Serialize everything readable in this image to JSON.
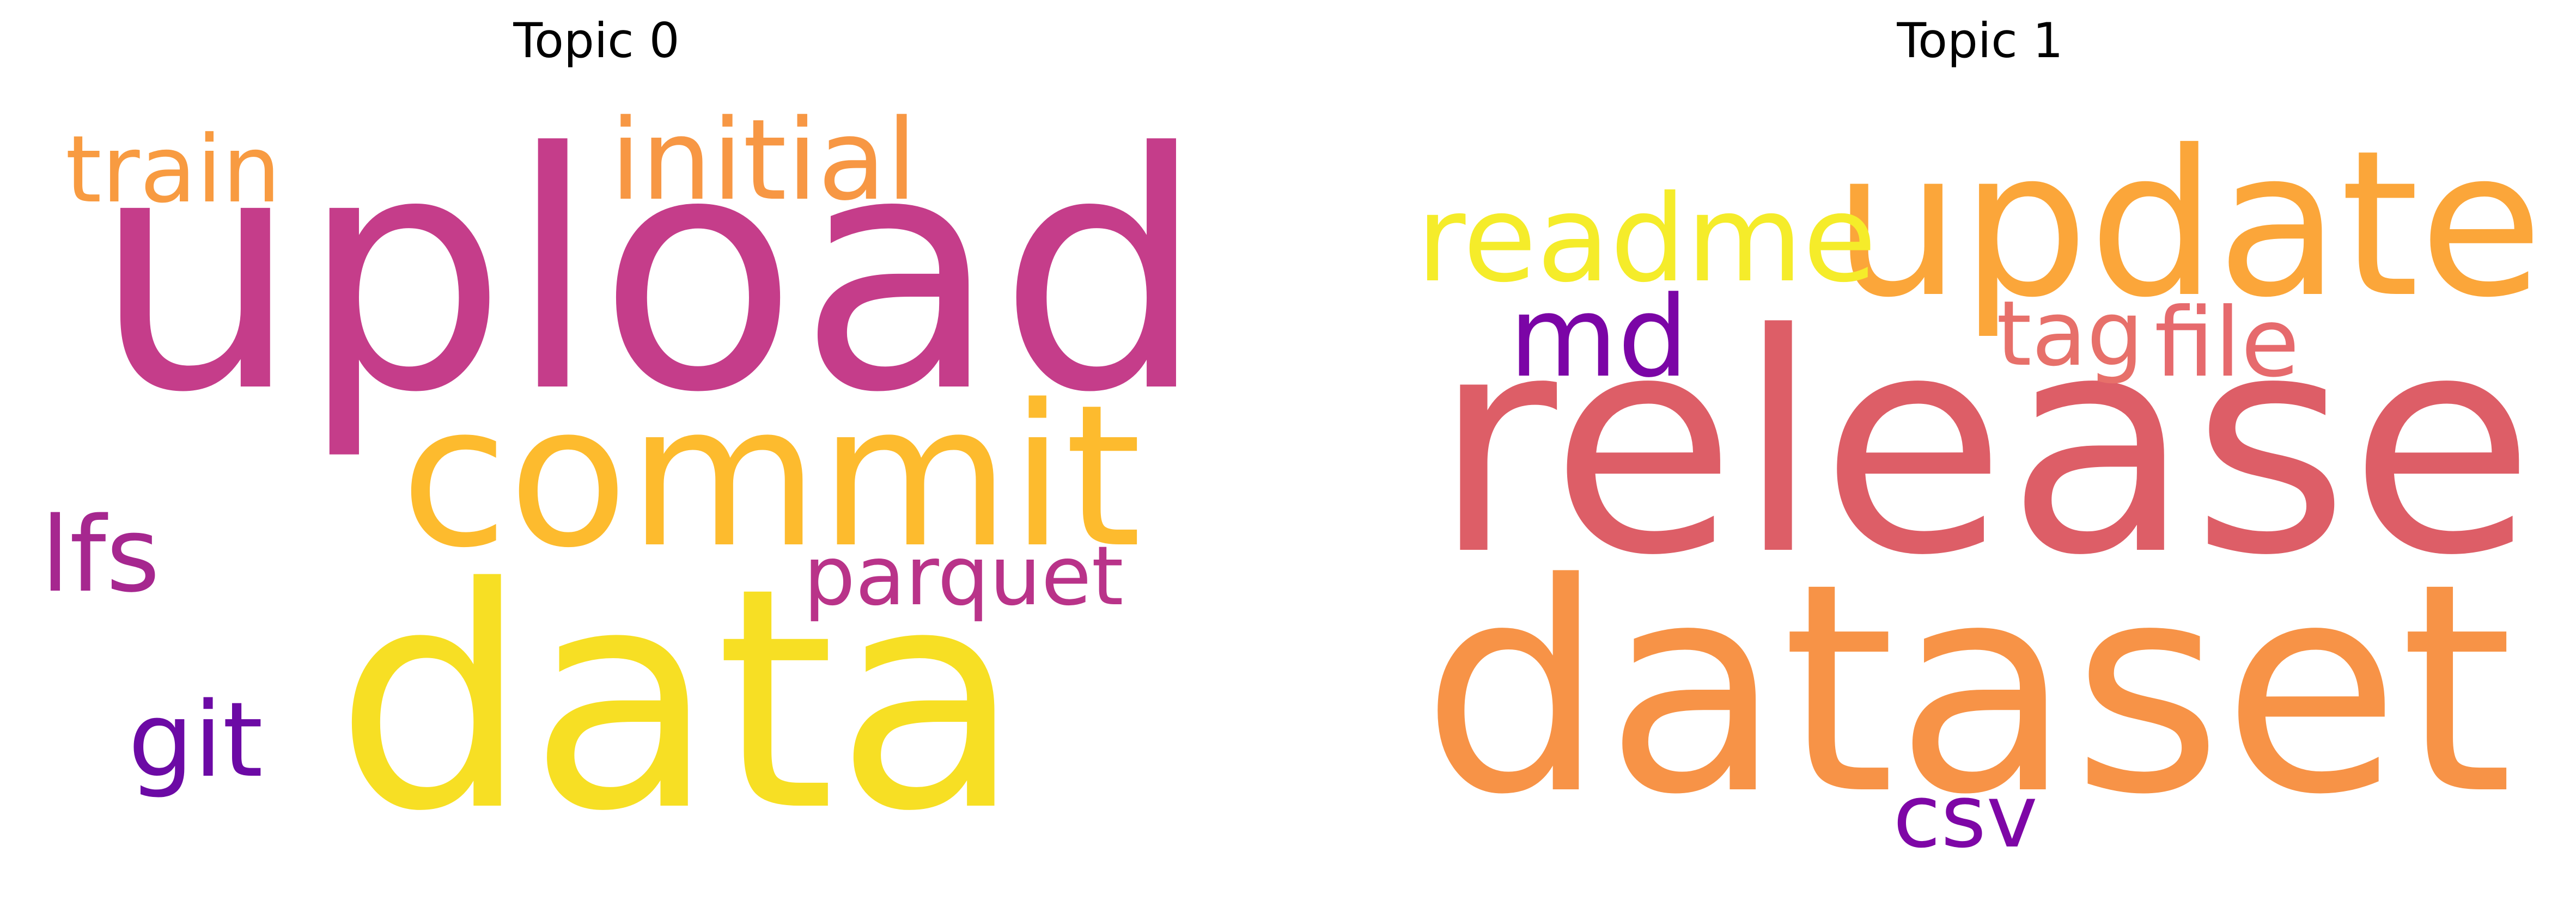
{
  "panels": [
    {
      "title": "Topic 0",
      "words": [
        {
          "text": "upload",
          "color": "#c53d8a"
        },
        {
          "text": "data",
          "color": "#f7df24"
        },
        {
          "text": "commit",
          "color": "#fdbb2e"
        },
        {
          "text": "initial",
          "color": "#f79744"
        },
        {
          "text": "train",
          "color": "#f89b41"
        },
        {
          "text": "lfs",
          "color": "#a6278f"
        },
        {
          "text": "parquet",
          "color": "#b93389"
        },
        {
          "text": "git",
          "color": "#6c0aa5"
        }
      ]
    },
    {
      "title": "Topic 1",
      "words": [
        {
          "text": "release",
          "color": "#dd5e67"
        },
        {
          "text": "dataset",
          "color": "#f79347"
        },
        {
          "text": "update",
          "color": "#fba63a"
        },
        {
          "text": "readme",
          "color": "#f5ec2a"
        },
        {
          "text": "md",
          "color": "#7b05a6"
        },
        {
          "text": "tag",
          "color": "#e7706a"
        },
        {
          "text": "file",
          "color": "#e66a6d"
        },
        {
          "text": "csv",
          "color": "#7e06a6"
        }
      ]
    }
  ]
}
